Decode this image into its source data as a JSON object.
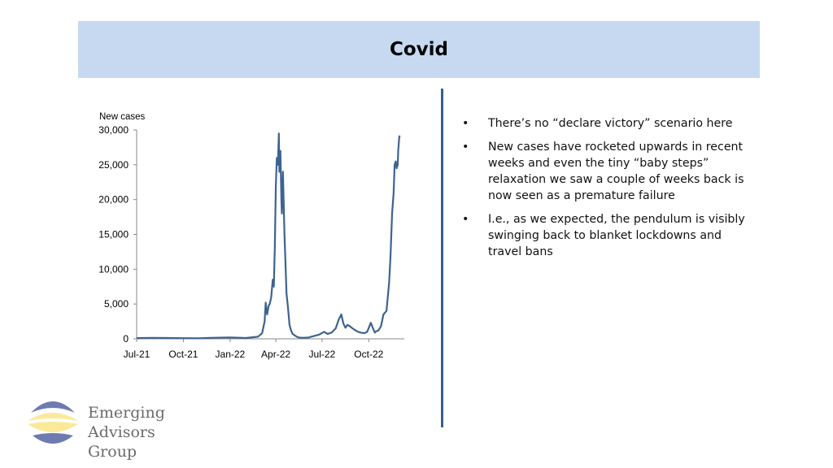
{
  "slide": {
    "title": "Covid"
  },
  "bullets": [
    "There’s no “declare victory” scenario here",
    "New cases have rocketed upwards in recent weeks and even the tiny “baby steps” relaxation we saw a couple of weeks back is now seen as a premature failure",
    "I.e., as we expected, the pendulum is visibly swinging back to blanket lockdowns and travel bans"
  ],
  "bullet_symbol": "•",
  "logo": {
    "line1": "Emerging Advisors",
    "line2": "Group",
    "colors": {
      "navy": "#6e7bb0",
      "yellow": "#fbe99a"
    }
  },
  "chart_data": {
    "type": "line",
    "title": "",
    "ylabel": "New cases",
    "xlabel": "",
    "ylim": [
      0,
      30000
    ],
    "xlim": [
      "2021-07-01",
      "2022-12-10"
    ],
    "yticks": [
      0,
      5000,
      10000,
      15000,
      20000,
      25000,
      30000
    ],
    "ytick_labels": [
      "0",
      "5,000",
      "10,000",
      "15,000",
      "20,000",
      "25,000",
      "30,000"
    ],
    "xticks": [
      "2021-07-01",
      "2021-10-01",
      "2022-01-01",
      "2022-04-01",
      "2022-07-01",
      "2022-10-01"
    ],
    "xtick_labels": [
      "Jul-21",
      "Oct-21",
      "Jan-22",
      "Apr-22",
      "Jul-22",
      "Oct-22"
    ],
    "grid": false,
    "color": "#3e6391",
    "series": [
      {
        "x": [
          "2021-07-01",
          "2021-08-01",
          "2021-09-01",
          "2021-10-01",
          "2021-11-01",
          "2021-12-01",
          "2022-01-01",
          "2022-02-01",
          "2022-02-25",
          "2022-03-05",
          "2022-03-10",
          "2022-03-12",
          "2022-03-15",
          "2022-03-18",
          "2022-03-20",
          "2022-03-23",
          "2022-03-26",
          "2022-03-28",
          "2022-03-30",
          "2022-04-01",
          "2022-04-03",
          "2022-04-05",
          "2022-04-07",
          "2022-04-08",
          "2022-04-10",
          "2022-04-12",
          "2022-04-13",
          "2022-04-15",
          "2022-04-18",
          "2022-04-20",
          "2022-04-22",
          "2022-04-25",
          "2022-04-28",
          "2022-05-01",
          "2022-05-04",
          "2022-05-08",
          "2022-05-12",
          "2022-05-16",
          "2022-05-22",
          "2022-05-28",
          "2022-06-05",
          "2022-06-15",
          "2022-06-25",
          "2022-07-05",
          "2022-07-12",
          "2022-07-20",
          "2022-07-28",
          "2022-08-03",
          "2022-08-08",
          "2022-08-12",
          "2022-08-16",
          "2022-08-20",
          "2022-08-25",
          "2022-08-30",
          "2022-09-05",
          "2022-09-10",
          "2022-09-15",
          "2022-09-22",
          "2022-09-28",
          "2022-10-05",
          "2022-10-10",
          "2022-10-13",
          "2022-10-16",
          "2022-10-20",
          "2022-10-25",
          "2022-10-30",
          "2022-11-05",
          "2022-11-10",
          "2022-11-13",
          "2022-11-16",
          "2022-11-19",
          "2022-11-21",
          "2022-11-23",
          "2022-11-25",
          "2022-11-27",
          "2022-11-28",
          "2022-11-30",
          "2022-12-01"
        ],
        "values": [
          100,
          140,
          120,
          90,
          80,
          150,
          200,
          120,
          300,
          800,
          2500,
          5200,
          3500,
          4800,
          5000,
          6000,
          8500,
          7500,
          13000,
          22000,
          26000,
          25000,
          29500,
          24000,
          27000,
          20000,
          18000,
          24000,
          15000,
          11000,
          6500,
          4500,
          2000,
          1200,
          700,
          500,
          300,
          200,
          150,
          150,
          200,
          400,
          600,
          1000,
          700,
          900,
          1500,
          2800,
          3500,
          2200,
          1600,
          2000,
          1800,
          1500,
          1200,
          1000,
          900,
          800,
          1000,
          2300,
          1400,
          900,
          1100,
          1200,
          1800,
          3500,
          4000,
          8000,
          12000,
          18000,
          21000,
          25000,
          25500,
          24500,
          25000,
          27000,
          29000,
          29200
        ]
      }
    ]
  }
}
